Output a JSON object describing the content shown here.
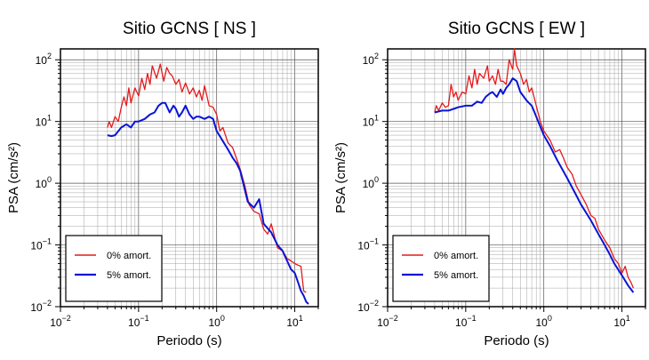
{
  "chart_data": [
    {
      "type": "line",
      "title": "Sitio GCNS [ NS ]",
      "xlabel": "Periodo (s)",
      "ylabel": "PSA (cm/s²)",
      "xscale": "log",
      "yscale": "log",
      "xlim": [
        0.01,
        20
      ],
      "ylim": [
        0.01,
        150
      ],
      "x_ticks": [
        {
          "base": "10",
          "exp": "−2"
        },
        {
          "base": "10",
          "exp": "−1"
        },
        {
          "base": "10",
          "exp": "0"
        },
        {
          "base": "10",
          "exp": "1"
        }
      ],
      "y_ticks": [
        {
          "base": "10",
          "exp": "−2"
        },
        {
          "base": "10",
          "exp": "−1"
        },
        {
          "base": "10",
          "exp": "0"
        },
        {
          "base": "10",
          "exp": "1"
        },
        {
          "base": "10",
          "exp": "2"
        }
      ],
      "grid": true,
      "legend_position": "bottom-left",
      "series": [
        {
          "name": "0% amort.",
          "color": "#e41a1c",
          "x": [
            0.04,
            0.042,
            0.045,
            0.05,
            0.055,
            0.06,
            0.065,
            0.07,
            0.075,
            0.08,
            0.09,
            0.1,
            0.11,
            0.12,
            0.13,
            0.14,
            0.15,
            0.17,
            0.19,
            0.21,
            0.23,
            0.25,
            0.27,
            0.3,
            0.33,
            0.36,
            0.4,
            0.45,
            0.5,
            0.55,
            0.6,
            0.65,
            0.7,
            0.8,
            0.9,
            1.0,
            1.1,
            1.2,
            1.4,
            1.6,
            1.8,
            2.0,
            2.3,
            2.6,
            3.0,
            3.5,
            4.0,
            4.5,
            5.0,
            6.0,
            7.0,
            8.0,
            9.0,
            10.0,
            11.0,
            12.0,
            13.0,
            14.0
          ],
          "y": [
            8,
            10,
            8,
            12,
            10,
            17,
            25,
            18,
            35,
            20,
            35,
            26,
            50,
            33,
            60,
            40,
            80,
            50,
            85,
            45,
            75,
            60,
            55,
            40,
            48,
            30,
            42,
            28,
            35,
            25,
            32,
            22,
            38,
            18,
            17,
            13,
            7,
            8,
            4.5,
            3.8,
            2.5,
            1.7,
            0.9,
            0.45,
            0.35,
            0.32,
            0.18,
            0.15,
            0.22,
            0.09,
            0.08,
            0.06,
            0.055,
            0.05,
            0.047,
            0.045,
            0.018,
            0.017
          ]
        },
        {
          "name": "5% amort.",
          "color": "#0a14d6",
          "x": [
            0.04,
            0.045,
            0.05,
            0.06,
            0.07,
            0.08,
            0.09,
            0.1,
            0.12,
            0.14,
            0.16,
            0.18,
            0.2,
            0.22,
            0.25,
            0.28,
            0.3,
            0.33,
            0.36,
            0.4,
            0.45,
            0.5,
            0.55,
            0.6,
            0.7,
            0.8,
            0.9,
            1.0,
            1.2,
            1.4,
            1.6,
            1.8,
            2.0,
            2.5,
            3.0,
            3.5,
            4.0,
            5.0,
            6.0,
            7.0,
            8.0,
            9.0,
            10.0,
            11.0,
            12.0,
            13.0,
            14.0,
            15.0
          ],
          "y": [
            6,
            5.8,
            6,
            8,
            9,
            8,
            10,
            10,
            11,
            13,
            14,
            18,
            20,
            20,
            14,
            18,
            16,
            12,
            14,
            18,
            13,
            11,
            12,
            12,
            11,
            12,
            11,
            7,
            4.8,
            3.5,
            2.6,
            2.1,
            1.6,
            0.5,
            0.4,
            0.55,
            0.22,
            0.16,
            0.1,
            0.08,
            0.055,
            0.04,
            0.035,
            0.025,
            0.018,
            0.015,
            0.012,
            0.011
          ]
        }
      ]
    },
    {
      "type": "line",
      "title": "Sitio GCNS [ EW ]",
      "xlabel": "Periodo (s)",
      "ylabel": "PSA (cm/s²)",
      "xscale": "log",
      "yscale": "log",
      "xlim": [
        0.01,
        20
      ],
      "ylim": [
        0.01,
        150
      ],
      "x_ticks": [
        {
          "base": "10",
          "exp": "−2"
        },
        {
          "base": "10",
          "exp": "−1"
        },
        {
          "base": "10",
          "exp": "0"
        },
        {
          "base": "10",
          "exp": "1"
        }
      ],
      "y_ticks": [
        {
          "base": "10",
          "exp": "−2"
        },
        {
          "base": "10",
          "exp": "−1"
        },
        {
          "base": "10",
          "exp": "0"
        },
        {
          "base": "10",
          "exp": "1"
        },
        {
          "base": "10",
          "exp": "2"
        }
      ],
      "grid": true,
      "legend_position": "bottom-left",
      "series": [
        {
          "name": "0% amort.",
          "color": "#e41a1c",
          "x": [
            0.04,
            0.042,
            0.045,
            0.05,
            0.055,
            0.06,
            0.065,
            0.07,
            0.075,
            0.08,
            0.09,
            0.1,
            0.11,
            0.12,
            0.13,
            0.14,
            0.15,
            0.17,
            0.19,
            0.2,
            0.22,
            0.24,
            0.26,
            0.28,
            0.3,
            0.33,
            0.36,
            0.4,
            0.42,
            0.45,
            0.5,
            0.55,
            0.6,
            0.65,
            0.7,
            0.8,
            0.9,
            1.0,
            1.2,
            1.4,
            1.6,
            1.8,
            2.0,
            2.3,
            2.6,
            3.0,
            3.5,
            4.0,
            4.5,
            5.0,
            6.0,
            7.0,
            8.0,
            9.0,
            10.0,
            11.0,
            12.0,
            13.0,
            14.0
          ],
          "y": [
            14,
            18,
            15,
            20,
            17,
            18,
            40,
            25,
            30,
            22,
            30,
            28,
            55,
            35,
            70,
            40,
            60,
            50,
            80,
            45,
            55,
            40,
            70,
            45,
            45,
            40,
            100,
            70,
            150,
            80,
            60,
            40,
            48,
            30,
            35,
            18,
            10,
            7,
            5,
            3.2,
            3.5,
            2.5,
            1.8,
            1.4,
            0.9,
            0.65,
            0.45,
            0.3,
            0.27,
            0.18,
            0.12,
            0.09,
            0.06,
            0.05,
            0.035,
            0.045,
            0.03,
            0.025,
            0.02
          ]
        },
        {
          "name": "5% amort.",
          "color": "#0a14d6",
          "x": [
            0.04,
            0.05,
            0.06,
            0.07,
            0.08,
            0.1,
            0.12,
            0.14,
            0.16,
            0.18,
            0.2,
            0.22,
            0.25,
            0.28,
            0.3,
            0.33,
            0.36,
            0.4,
            0.45,
            0.5,
            0.6,
            0.7,
            0.8,
            1.0,
            1.2,
            1.5,
            2.0,
            2.5,
            3.0,
            4.0,
            5.0,
            6.0,
            7.0,
            8.0,
            10.0,
            12.0,
            14.0
          ],
          "y": [
            14,
            15,
            15,
            16,
            17,
            18,
            18,
            21,
            20,
            25,
            28,
            30,
            25,
            33,
            28,
            35,
            40,
            50,
            45,
            30,
            22,
            18,
            12,
            6,
            4,
            2.3,
            1.2,
            0.7,
            0.45,
            0.25,
            0.15,
            0.1,
            0.07,
            0.05,
            0.032,
            0.022,
            0.017
          ]
        }
      ]
    }
  ]
}
